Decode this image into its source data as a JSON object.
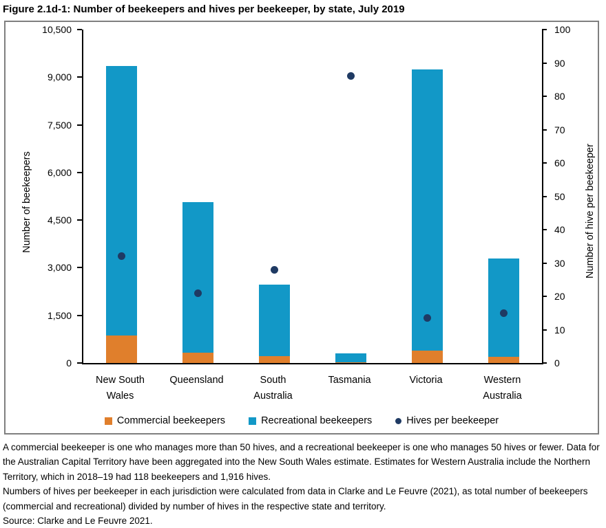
{
  "page": {
    "title": "Figure 2.1d-1: Number of beekeepers and hives per beekeeper, by state, July 2019"
  },
  "colors": {
    "commercial": "#e07f2c",
    "recreational": "#1298c7",
    "dot": "#1f3a63",
    "box_border": "#7f7f7f",
    "axis": "#000000"
  },
  "chart_data": {
    "type": "bar",
    "variant": "stacked-bar-with-scatter-dual-axis",
    "grid": false,
    "legend_position": "bottom",
    "categories": [
      "New South Wales",
      "Queensland",
      "South Australia",
      "Tasmania",
      "Victoria",
      "Western Australia"
    ],
    "category_lines": [
      [
        "New South",
        "Wales"
      ],
      [
        "Queensland"
      ],
      [
        "South",
        "Australia"
      ],
      [
        "Tasmania"
      ],
      [
        "Victoria"
      ],
      [
        "Western",
        "Australia"
      ]
    ],
    "series": [
      {
        "name": "Commercial beekeepers",
        "type": "bar",
        "axis": "left",
        "color": "#e07f2c",
        "values": [
          860,
          320,
          210,
          25,
          380,
          190
        ]
      },
      {
        "name": "Recreational beekeepers",
        "type": "bar",
        "axis": "left",
        "color": "#1298c7",
        "values": [
          8490,
          4740,
          2260,
          275,
          8870,
          3110
        ]
      },
      {
        "name": "Hives per beekeeper",
        "type": "scatter",
        "axis": "right",
        "color": "#1f3a63",
        "values": [
          32,
          21,
          28,
          86,
          13.5,
          15
        ]
      }
    ],
    "bar_totals": [
      9350,
      5060,
      2470,
      300,
      9250,
      3300
    ],
    "left_axis": {
      "label": "Number of beekeepers",
      "min": 0,
      "max": 10500,
      "step": 1500,
      "tick_labels": [
        "0",
        "1,500",
        "3,000",
        "4,500",
        "6,000",
        "7,500",
        "9,000",
        "10,500"
      ]
    },
    "right_axis": {
      "label": "Number of hive per beekeeper",
      "min": 0,
      "max": 100,
      "step": 10,
      "tick_labels": [
        "0",
        "10",
        "20",
        "30",
        "40",
        "50",
        "60",
        "70",
        "80",
        "90",
        "100"
      ]
    }
  },
  "notes": {
    "paragraph1": "A commercial beekeeper is one who manages more than 50 hives, and a recreational beekeeper is one who manages 50 hives or fewer. Data for the Australian Capital Territory have been aggregated into the New South Wales estimate. Estimates for Western Australia include the Northern Territory, which in 2018–19 had 118 beekeepers and 1,916 hives.",
    "paragraph2": "Numbers of hives per beekeeper in each jurisdiction were calculated from data in Clarke and Le Feuvre (2021), as total number of beekeepers (commercial and recreational) divided by number of hives in the respective state and territory.",
    "source": "Source: Clarke and Le Feuvre 2021."
  }
}
